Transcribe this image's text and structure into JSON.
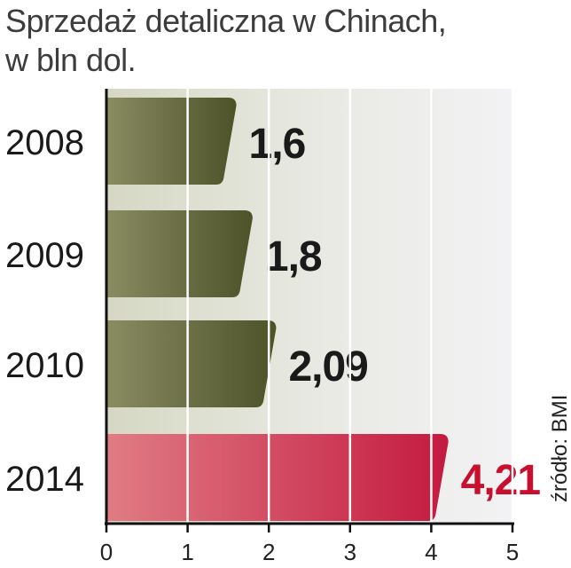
{
  "chart_data": {
    "type": "bar",
    "orientation": "horizontal",
    "title_lines": [
      "Sprzedaż detaliczna w Chinach,",
      "w bln dol."
    ],
    "categories": [
      "2008",
      "2009",
      "2010",
      "2014"
    ],
    "values": [
      1.6,
      1.8,
      2.09,
      4.21
    ],
    "value_labels": [
      "1,6",
      "1,8",
      "2,09",
      "4,21"
    ],
    "xlim": [
      0,
      5
    ],
    "x_ticks": [
      "0",
      "1",
      "2",
      "3",
      "4",
      "5"
    ],
    "grid": true,
    "source": "źródło: BMI",
    "colors": {
      "bar_dark": "#4d5228",
      "bar_light": "#8a8c62",
      "highlight_dark": "#c41a3f",
      "highlight_light": "#e07c84",
      "highlight_label": "#c8102e",
      "label": "#1a1a1a"
    },
    "highlighted_category": "2014"
  }
}
